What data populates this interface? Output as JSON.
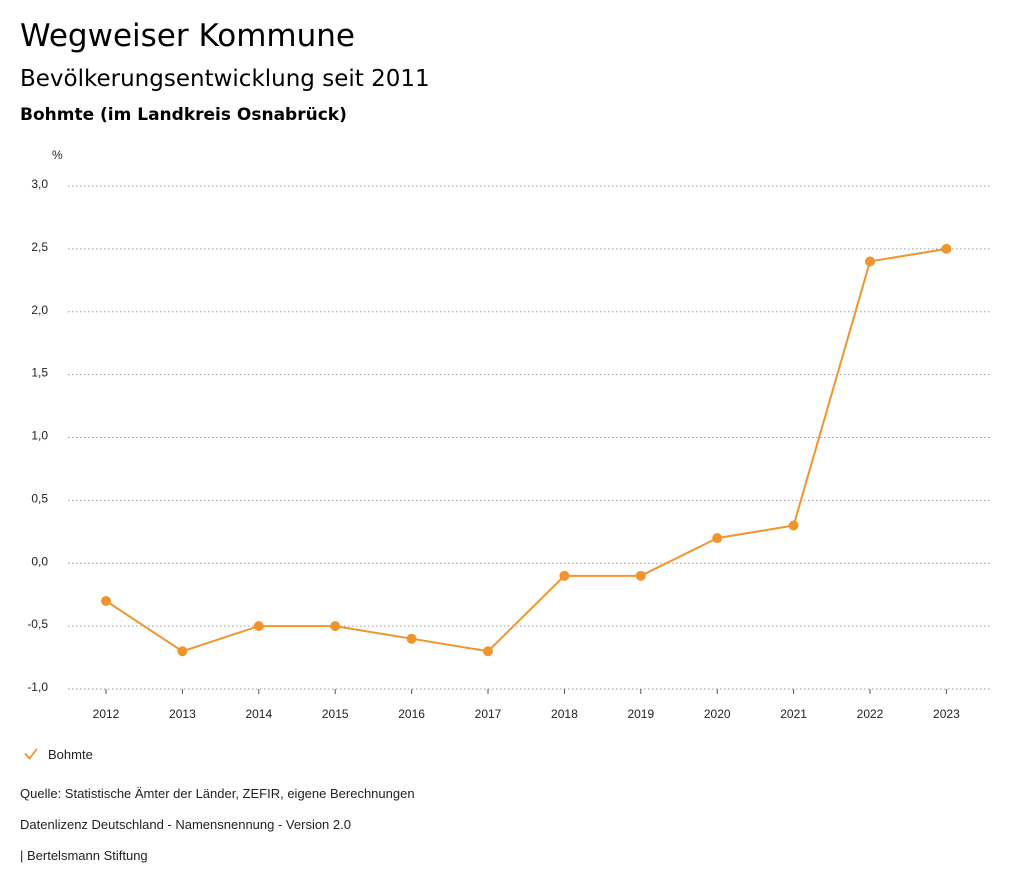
{
  "header": {
    "title": "Wegweiser Kommune",
    "subtitle": "Bevölkerungsentwicklung seit 2011",
    "region": "Bohmte (im Landkreis Osnabrück)"
  },
  "chart_data": {
    "type": "line",
    "title": "Bevölkerungsentwicklung seit 2011",
    "xlabel": "",
    "ylabel": "%",
    "categories": [
      "2012",
      "2013",
      "2014",
      "2015",
      "2016",
      "2017",
      "2018",
      "2019",
      "2020",
      "2021",
      "2022",
      "2023"
    ],
    "series": [
      {
        "name": "Bohmte",
        "color": "#f0952e",
        "values": [
          -0.3,
          -0.7,
          -0.5,
          -0.5,
          -0.6,
          -0.7,
          -0.1,
          -0.1,
          0.2,
          0.3,
          2.4,
          2.5
        ]
      }
    ],
    "ylim": [
      -1.0,
      3.0
    ],
    "yticks": [
      -1.0,
      -0.5,
      0.0,
      0.5,
      1.0,
      1.5,
      2.0,
      2.5,
      3.0
    ],
    "ytick_labels": [
      "-1,0",
      "-0,5",
      "0,0",
      "0,5",
      "1,0",
      "1,5",
      "2,0",
      "2,5",
      "3,0"
    ],
    "grid": true,
    "legend": "bottom-left"
  },
  "legend": {
    "label": "Bohmte",
    "icon": "check-icon",
    "color": "#f0952e"
  },
  "footer": {
    "source": "Quelle: Statistische Ämter der Länder, ZEFIR, eigene Berechnungen",
    "license": "Datenlizenz Deutschland - Namensnennung - Version 2.0",
    "publisher": "| Bertelsmann Stiftung"
  }
}
